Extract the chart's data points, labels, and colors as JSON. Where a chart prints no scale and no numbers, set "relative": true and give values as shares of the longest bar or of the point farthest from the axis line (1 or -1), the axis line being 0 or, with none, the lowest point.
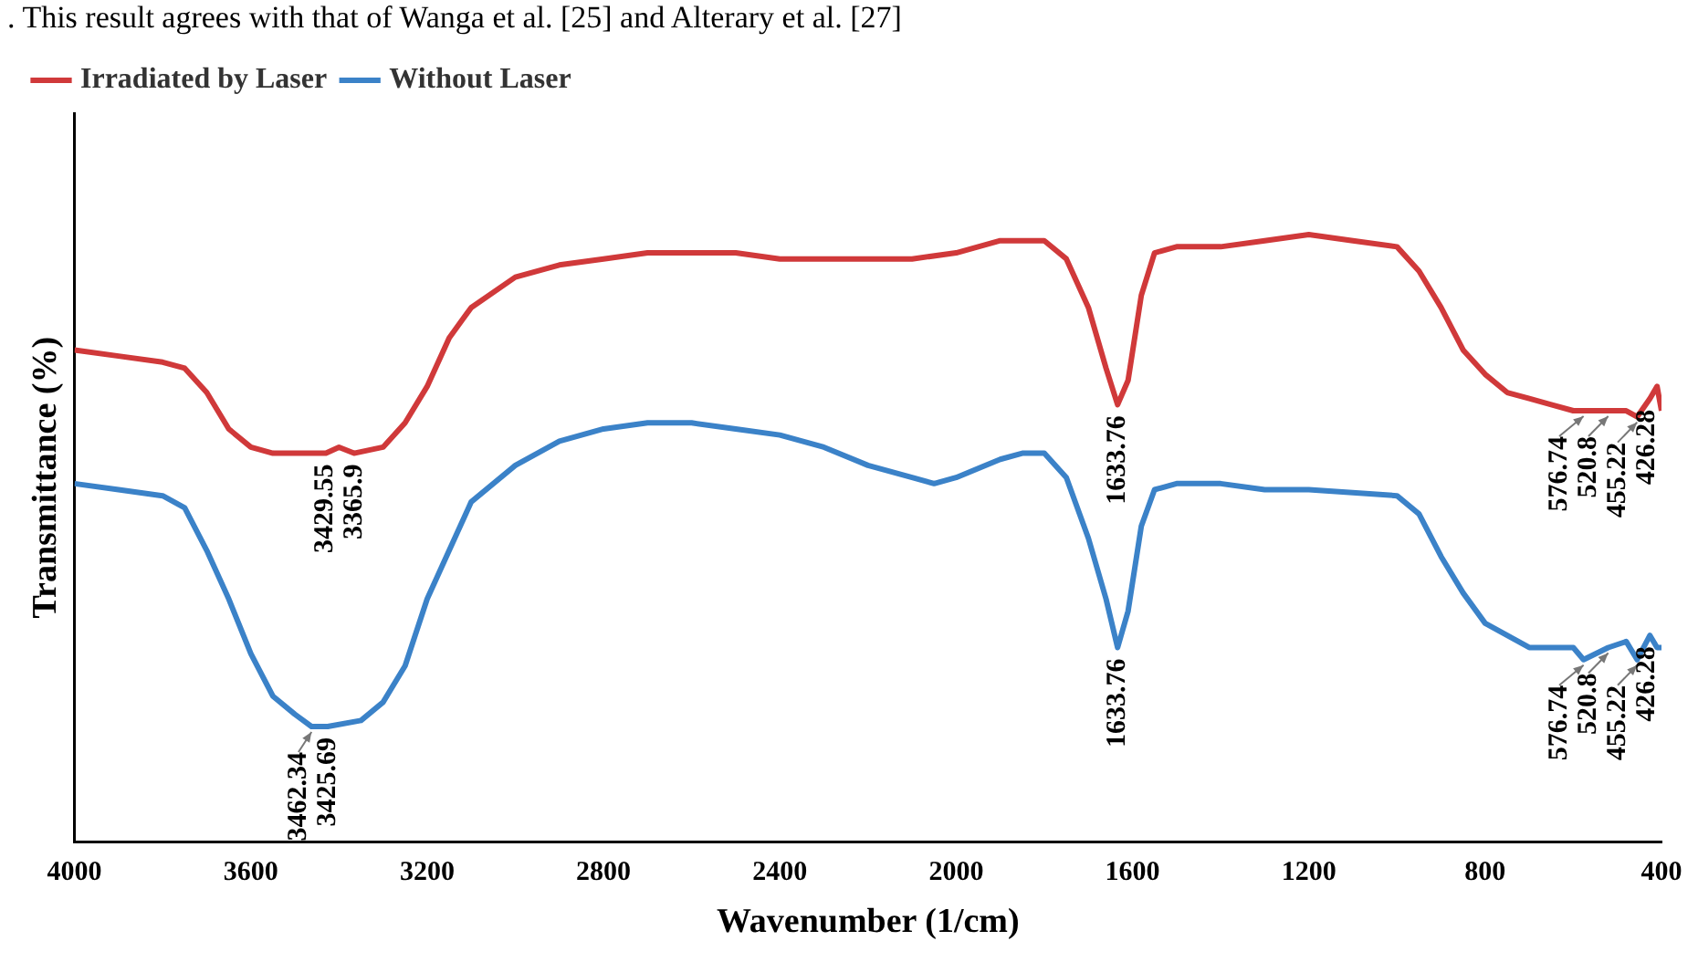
{
  "chart_data": {
    "type": "line",
    "xlabel": "Wavenumber (1/cm)",
    "ylabel": "Transmittance (%)",
    "relative": true,
    "legend": "top left",
    "marker": "none",
    "line_style": "solid",
    "grid": false,
    "xlim": [
      4000,
      400
    ],
    "xticks": [
      4000,
      3600,
      3200,
      2800,
      2400,
      2000,
      1600,
      1200,
      800,
      400
    ],
    "series": [
      {
        "name": "Irradiated by Laser",
        "color": "#d0393a",
        "x": [
          4000,
          3900,
          3800,
          3750,
          3700,
          3650,
          3600,
          3550,
          3500,
          3429.55,
          3400,
          3365.9,
          3300,
          3250,
          3200,
          3150,
          3100,
          3000,
          2900,
          2800,
          2700,
          2600,
          2500,
          2400,
          2200,
          2100,
          2000,
          1900,
          1850,
          1800,
          1750,
          1700,
          1660,
          1633.76,
          1610,
          1580,
          1550,
          1500,
          1400,
          1300,
          1200,
          1100,
          1000,
          950,
          900,
          850,
          800,
          750,
          700,
          650,
          600,
          576.74,
          520.8,
          480,
          455.22,
          426.28,
          410,
          400
        ],
        "values": [
          0.81,
          0.8,
          0.79,
          0.78,
          0.74,
          0.68,
          0.65,
          0.64,
          0.64,
          0.64,
          0.65,
          0.64,
          0.65,
          0.69,
          0.75,
          0.83,
          0.88,
          0.93,
          0.95,
          0.96,
          0.97,
          0.97,
          0.97,
          0.96,
          0.96,
          0.96,
          0.97,
          0.99,
          0.99,
          0.99,
          0.96,
          0.88,
          0.78,
          0.72,
          0.76,
          0.9,
          0.97,
          0.98,
          0.98,
          0.99,
          1,
          0.99,
          0.98,
          0.94,
          0.88,
          0.81,
          0.77,
          0.74,
          0.73,
          0.72,
          0.71,
          0.71,
          0.71,
          0.71,
          0.7,
          0.73,
          0.75,
          0.71
        ]
      },
      {
        "name": "Without Laser",
        "color": "#3b82c8",
        "x": [
          4000,
          3900,
          3800,
          3750,
          3700,
          3650,
          3600,
          3550,
          3500,
          3462.34,
          3425.69,
          3350,
          3300,
          3250,
          3200,
          3150,
          3100,
          3000,
          2900,
          2800,
          2700,
          2600,
          2500,
          2400,
          2300,
          2200,
          2100,
          2050,
          2000,
          1900,
          1850,
          1800,
          1750,
          1700,
          1660,
          1633.76,
          1610,
          1580,
          1550,
          1500,
          1400,
          1300,
          1200,
          1000,
          950,
          900,
          850,
          800,
          750,
          700,
          650,
          600,
          576.74,
          520.8,
          480,
          455.22,
          426.28,
          410,
          400
        ],
        "values": [
          0.59,
          0.58,
          0.57,
          0.55,
          0.48,
          0.4,
          0.31,
          0.24,
          0.21,
          0.19,
          0.19,
          0.2,
          0.23,
          0.29,
          0.4,
          0.48,
          0.56,
          0.62,
          0.66,
          0.68,
          0.69,
          0.69,
          0.68,
          0.67,
          0.65,
          0.62,
          0.6,
          0.59,
          0.6,
          0.63,
          0.64,
          0.64,
          0.6,
          0.5,
          0.4,
          0.32,
          0.38,
          0.52,
          0.58,
          0.59,
          0.59,
          0.58,
          0.58,
          0.57,
          0.54,
          0.47,
          0.41,
          0.36,
          0.34,
          0.32,
          0.32,
          0.32,
          0.3,
          0.32,
          0.33,
          0.3,
          0.34,
          0.32,
          0.32
        ]
      }
    ],
    "annotations": [
      ". This result agrees with that of Wanga et al. [25] and Alterary et al. [27]",
      {
        "text": "3429.55",
        "x": 3429.55,
        "y": 0.64
      },
      {
        "text": "3365.9",
        "x": 3365.9,
        "y": 0.64
      },
      {
        "text": "1633.76",
        "x": 1633.76,
        "y": 0.72
      },
      {
        "text": "576.74",
        "x": 576.74,
        "y": 0.71
      },
      {
        "text": "520.8",
        "x": 520.8,
        "y": 0.71
      },
      {
        "text": "455.22",
        "x": 455.22,
        "y": 0.7
      },
      {
        "text": "426.28",
        "x": 426.28,
        "y": 0.73
      },
      {
        "text": "3462.34",
        "x": 3462.34,
        "y": 0.19
      },
      {
        "text": "3425.69",
        "x": 3425.69,
        "y": 0.19
      },
      {
        "text": "1633.76",
        "x": 1633.76,
        "y": 0.32
      },
      {
        "text": "576.74",
        "x": 576.74,
        "y": 0.3
      },
      {
        "text": "520.8",
        "x": 520.8,
        "y": 0.32
      },
      {
        "text": "455.22",
        "x": 455.22,
        "y": 0.3
      },
      {
        "text": "426.28",
        "x": 426.28,
        "y": 0.34
      }
    ]
  }
}
